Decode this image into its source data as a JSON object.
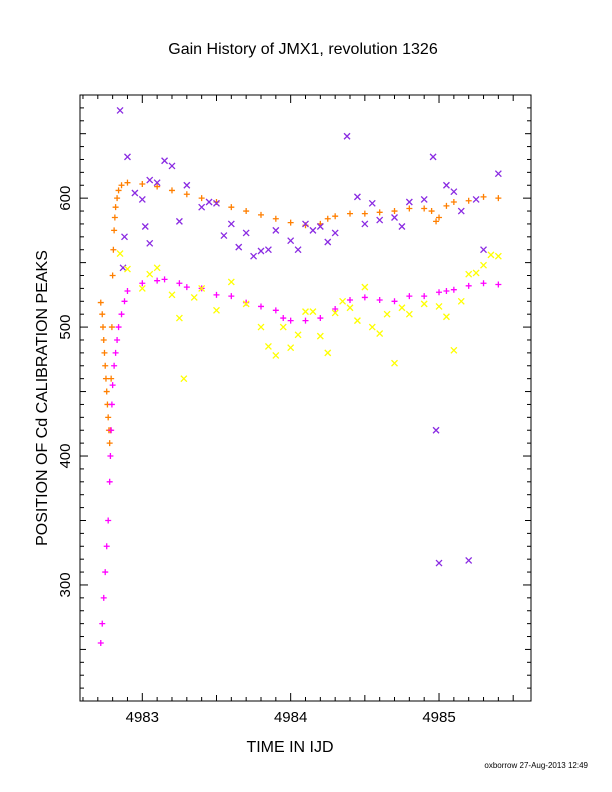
{
  "chart_data": {
    "type": "scatter",
    "title": "Gain History of JMX1, revolution 1326",
    "xlabel": "TIME IN IJD",
    "ylabel": "POSITION OF Cd CALIBRATION PEAKS",
    "xlim": [
      4982.58,
      4985.62
    ],
    "ylim": [
      210,
      680
    ],
    "xticks": [
      4983,
      4984,
      4985
    ],
    "yticks": [
      300,
      400,
      500,
      600
    ],
    "xtick_labels": [
      "4983",
      "4984",
      "4985"
    ],
    "ytick_labels": [
      "300",
      "400",
      "500",
      "600"
    ],
    "grid": false,
    "colors": {
      "orange": "#ff7f00",
      "magenta": "#ff00ff",
      "purple": "#8a2be2",
      "yellow": "#ffff00"
    },
    "series": [
      {
        "marker": "plus",
        "color": "orange",
        "points": [
          [
            4982.72,
            519
          ],
          [
            4982.73,
            510
          ],
          [
            4982.735,
            500
          ],
          [
            4982.74,
            490
          ],
          [
            4982.745,
            480
          ],
          [
            4982.75,
            470
          ],
          [
            4982.755,
            460
          ],
          [
            4982.76,
            450
          ],
          [
            4982.765,
            440
          ],
          [
            4982.77,
            430
          ],
          [
            4982.775,
            420
          ],
          [
            4982.78,
            410
          ],
          [
            4982.785,
            420
          ],
          [
            4982.79,
            460
          ],
          [
            4982.795,
            500
          ],
          [
            4982.8,
            540
          ],
          [
            4982.805,
            560
          ],
          [
            4982.81,
            575
          ],
          [
            4982.815,
            585
          ],
          [
            4982.82,
            593
          ],
          [
            4982.83,
            600
          ],
          [
            4982.84,
            606
          ],
          [
            4982.86,
            610
          ],
          [
            4982.9,
            612
          ],
          [
            4983.0,
            611
          ],
          [
            4983.1,
            609
          ],
          [
            4983.2,
            606
          ],
          [
            4983.3,
            603
          ],
          [
            4983.4,
            600
          ],
          [
            4983.5,
            597
          ],
          [
            4983.6,
            593
          ],
          [
            4983.7,
            590
          ],
          [
            4983.8,
            587
          ],
          [
            4983.9,
            584
          ],
          [
            4984.0,
            581
          ],
          [
            4984.1,
            579
          ],
          [
            4984.2,
            580
          ],
          [
            4984.25,
            584
          ],
          [
            4984.3,
            586
          ],
          [
            4984.4,
            588
          ],
          [
            4984.5,
            588
          ],
          [
            4984.6,
            589
          ],
          [
            4984.7,
            590
          ],
          [
            4984.8,
            592
          ],
          [
            4984.9,
            592
          ],
          [
            4984.95,
            590
          ],
          [
            4984.98,
            582
          ],
          [
            4985.0,
            585
          ],
          [
            4985.05,
            594
          ],
          [
            4985.1,
            597
          ],
          [
            4985.2,
            598
          ],
          [
            4985.3,
            601
          ],
          [
            4985.4,
            600
          ]
        ]
      },
      {
        "marker": "plus",
        "color": "magenta",
        "points": [
          [
            4982.72,
            255
          ],
          [
            4982.73,
            270
          ],
          [
            4982.74,
            290
          ],
          [
            4982.75,
            310
          ],
          [
            4982.76,
            330
          ],
          [
            4982.77,
            350
          ],
          [
            4982.78,
            380
          ],
          [
            4982.785,
            400
          ],
          [
            4982.79,
            420
          ],
          [
            4982.795,
            440
          ],
          [
            4982.8,
            455
          ],
          [
            4982.81,
            470
          ],
          [
            4982.82,
            480
          ],
          [
            4982.83,
            490
          ],
          [
            4982.84,
            500
          ],
          [
            4982.86,
            510
          ],
          [
            4982.88,
            520
          ],
          [
            4982.9,
            528
          ],
          [
            4983.0,
            534
          ],
          [
            4983.1,
            536
          ],
          [
            4983.15,
            537
          ],
          [
            4983.25,
            534
          ],
          [
            4983.3,
            531
          ],
          [
            4983.4,
            530
          ],
          [
            4983.5,
            525
          ],
          [
            4983.6,
            524
          ],
          [
            4983.7,
            519
          ],
          [
            4983.8,
            516
          ],
          [
            4983.9,
            513
          ],
          [
            4983.95,
            507
          ],
          [
            4984.0,
            505
          ],
          [
            4984.1,
            505
          ],
          [
            4984.2,
            507
          ],
          [
            4984.3,
            514
          ],
          [
            4984.4,
            521
          ],
          [
            4984.5,
            523
          ],
          [
            4984.6,
            521
          ],
          [
            4984.7,
            520
          ],
          [
            4984.8,
            524
          ],
          [
            4984.9,
            524
          ],
          [
            4985.0,
            527
          ],
          [
            4985.05,
            528
          ],
          [
            4985.1,
            529
          ],
          [
            4985.2,
            532
          ],
          [
            4985.3,
            534
          ],
          [
            4985.4,
            533
          ]
        ]
      },
      {
        "marker": "x",
        "color": "purple",
        "points": [
          [
            4982.85,
            668
          ],
          [
            4982.9,
            632
          ],
          [
            4982.95,
            604
          ],
          [
            4983.0,
            599
          ],
          [
            4983.05,
            614
          ],
          [
            4983.1,
            612
          ],
          [
            4983.15,
            629
          ],
          [
            4983.2,
            625
          ],
          [
            4983.3,
            610
          ],
          [
            4983.4,
            593
          ],
          [
            4983.5,
            596
          ],
          [
            4983.55,
            571
          ],
          [
            4983.6,
            580
          ],
          [
            4983.7,
            573
          ],
          [
            4983.8,
            559
          ],
          [
            4983.9,
            575
          ],
          [
            4984.0,
            567
          ],
          [
            4984.1,
            580
          ],
          [
            4984.2,
            578
          ],
          [
            4984.3,
            573
          ],
          [
            4984.38,
            648
          ],
          [
            4984.45,
            601
          ],
          [
            4984.5,
            580
          ],
          [
            4984.6,
            583
          ],
          [
            4984.7,
            585
          ],
          [
            4984.8,
            597
          ],
          [
            4984.9,
            599
          ],
          [
            4984.96,
            632
          ],
          [
            4984.98,
            420
          ],
          [
            4985.0,
            317
          ],
          [
            4985.05,
            610
          ],
          [
            4985.1,
            605
          ],
          [
            4985.2,
            319
          ],
          [
            4985.3,
            560
          ],
          [
            4985.4,
            619
          ],
          [
            4982.87,
            546
          ],
          [
            4982.88,
            570
          ],
          [
            4983.02,
            578
          ],
          [
            4983.05,
            565
          ],
          [
            4983.25,
            582
          ],
          [
            4983.45,
            597
          ],
          [
            4983.65,
            562
          ],
          [
            4983.75,
            555
          ],
          [
            4983.85,
            560
          ],
          [
            4984.05,
            560
          ],
          [
            4984.15,
            575
          ],
          [
            4984.25,
            566
          ],
          [
            4984.55,
            596
          ],
          [
            4984.75,
            578
          ],
          [
            4985.15,
            590
          ],
          [
            4985.25,
            599
          ]
        ]
      },
      {
        "marker": "x",
        "color": "yellow",
        "points": [
          [
            4982.85,
            557
          ],
          [
            4982.9,
            545
          ],
          [
            4983.0,
            530
          ],
          [
            4983.05,
            541
          ],
          [
            4983.1,
            546
          ],
          [
            4983.2,
            525
          ],
          [
            4983.25,
            507
          ],
          [
            4983.28,
            460
          ],
          [
            4983.35,
            523
          ],
          [
            4983.4,
            530
          ],
          [
            4983.5,
            513
          ],
          [
            4983.6,
            535
          ],
          [
            4983.7,
            518
          ],
          [
            4983.8,
            500
          ],
          [
            4983.85,
            485
          ],
          [
            4983.9,
            478
          ],
          [
            4984.0,
            484
          ],
          [
            4984.05,
            494
          ],
          [
            4984.1,
            512
          ],
          [
            4984.15,
            512
          ],
          [
            4984.2,
            493
          ],
          [
            4984.25,
            480
          ],
          [
            4984.3,
            511
          ],
          [
            4984.4,
            515
          ],
          [
            4984.5,
            531
          ],
          [
            4984.6,
            495
          ],
          [
            4984.7,
            472
          ],
          [
            4984.8,
            510
          ],
          [
            4984.9,
            518
          ],
          [
            4985.0,
            516
          ],
          [
            4985.1,
            482
          ],
          [
            4985.15,
            520
          ],
          [
            4985.2,
            541
          ],
          [
            4985.25,
            542
          ],
          [
            4985.3,
            548
          ],
          [
            4985.35,
            556
          ],
          [
            4985.4,
            555
          ],
          [
            4983.95,
            500
          ],
          [
            4984.35,
            520
          ],
          [
            4984.45,
            505
          ],
          [
            4984.55,
            500
          ],
          [
            4984.65,
            510
          ],
          [
            4984.75,
            515
          ],
          [
            4985.05,
            508
          ]
        ]
      }
    ]
  },
  "footer": {
    "stamp": "oxborrow 27-Aug-2013 12:49"
  }
}
